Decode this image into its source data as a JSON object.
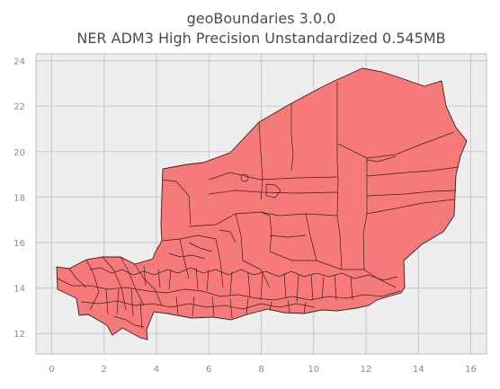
{
  "title_line1": "geoBoundaries 3.0.0",
  "title_line2": "NER ADM3 High Precision Unstandardized 0.545MB",
  "colors": {
    "plot_background": "#eeeeee",
    "grid": "#cccccc",
    "fill": "#f77a7a",
    "edge": "#3a2020"
  },
  "axes": {
    "x_ticks": [
      "0",
      "2",
      "4",
      "6",
      "8",
      "10",
      "12",
      "14",
      "16"
    ],
    "y_ticks": [
      "12",
      "14",
      "16",
      "18",
      "20",
      "22",
      "24"
    ],
    "xlim": [
      -0.6,
      16.6
    ],
    "ylim": [
      11.1,
      24.3
    ]
  }
}
